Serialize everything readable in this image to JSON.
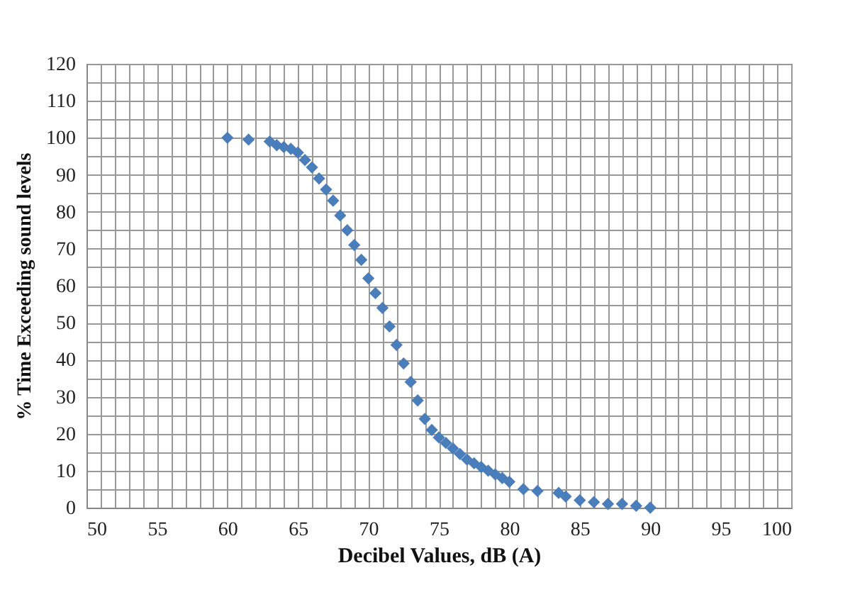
{
  "chart_data": {
    "type": "scatter",
    "xlabel": "Decibel Values, dB (A)",
    "ylabel": "% Time Exceeding sound levels",
    "x": [
      60,
      61.5,
      63,
      63.5,
      64,
      64.5,
      65,
      65.5,
      66,
      66.5,
      67,
      67.5,
      68,
      68.5,
      69,
      69.5,
      70,
      70.5,
      71,
      71.5,
      72,
      72.5,
      73,
      73.5,
      74,
      74.5,
      75,
      75.5,
      76,
      76.5,
      77,
      77.5,
      78,
      78.5,
      79,
      79.5,
      80,
      81,
      82,
      83.5,
      84,
      85,
      86,
      87,
      88,
      89,
      90
    ],
    "values": [
      100,
      99.5,
      99,
      98,
      97.5,
      97,
      96,
      94,
      92,
      89,
      86,
      83,
      79,
      75,
      71,
      67,
      62,
      58,
      54,
      49,
      44,
      39,
      34,
      29,
      24,
      21,
      19,
      17.5,
      16,
      14.5,
      13,
      12,
      11,
      10,
      9,
      8,
      7,
      5,
      4.5,
      4,
      3,
      2,
      1.5,
      1,
      1,
      0.5,
      0
    ],
    "color": "#4a7ebb",
    "marker": "diamond",
    "grid": true,
    "xlim": [
      50,
      100
    ],
    "ylim": [
      0,
      120
    ],
    "xticks": [
      50,
      {
        "value": 51,
        "label": null
      },
      {
        "value": 52,
        "label": null
      },
      {
        "value": 53,
        "label": null
      },
      {
        "value": 54,
        "label": null
      },
      55,
      {
        "value": 56,
        "label": null
      },
      {
        "value": 57,
        "label": null
      },
      {
        "value": 58,
        "label": null
      },
      {
        "value": 59,
        "label": null
      },
      60,
      {
        "value": 61,
        "label": null
      },
      {
        "value": 62,
        "label": null
      },
      {
        "value": 63,
        "label": null
      },
      {
        "value": 64,
        "label": null
      },
      65,
      {
        "value": 66,
        "label": null
      },
      {
        "value": 67,
        "label": null
      },
      {
        "value": 68,
        "label": null
      },
      {
        "value": 69,
        "label": null
      },
      70,
      {
        "value": 71,
        "label": null
      },
      {
        "value": 72,
        "label": null
      },
      {
        "value": 73,
        "label": null
      },
      {
        "value": 74,
        "label": null
      },
      75,
      {
        "value": 76,
        "label": null
      },
      {
        "value": 77,
        "label": null
      },
      {
        "value": 78,
        "label": null
      },
      {
        "value": 79,
        "label": null
      },
      80,
      {
        "value": 81,
        "label": null
      },
      {
        "value": 82,
        "label": null
      },
      {
        "value": 83,
        "label": null
      },
      {
        "value": 84,
        "label": null
      },
      85,
      {
        "value": 86,
        "label": null
      },
      {
        "value": 87,
        "label": null
      },
      {
        "value": 88,
        "label": null
      },
      {
        "value": 89,
        "label": null
      },
      90,
      {
        "value": 91,
        "label": null
      },
      {
        "value": 92,
        "label": null
      },
      {
        "value": 93,
        "label": null
      },
      {
        "value": 94,
        "label": null
      },
      95,
      {
        "value": 96,
        "label": null
      },
      {
        "value": 97,
        "label": null
      },
      {
        "value": 98,
        "label": null
      },
      {
        "value": 99,
        "label": null
      },
      100
    ],
    "yticks": [
      0,
      {
        "value": 5,
        "label": null
      },
      10,
      {
        "value": 15,
        "label": null
      },
      20,
      {
        "value": 25,
        "label": null
      },
      30,
      {
        "value": 35,
        "label": null
      },
      40,
      {
        "value": 45,
        "label": null
      },
      50,
      {
        "value": 55,
        "label": null
      },
      60,
      {
        "value": 65,
        "label": null
      },
      70,
      {
        "value": 75,
        "label": null
      },
      80,
      {
        "value": 85,
        "label": null
      },
      90,
      {
        "value": 95,
        "label": null
      },
      100,
      {
        "value": 105,
        "label": null
      },
      110,
      {
        "value": 115,
        "label": null
      },
      120
    ]
  }
}
